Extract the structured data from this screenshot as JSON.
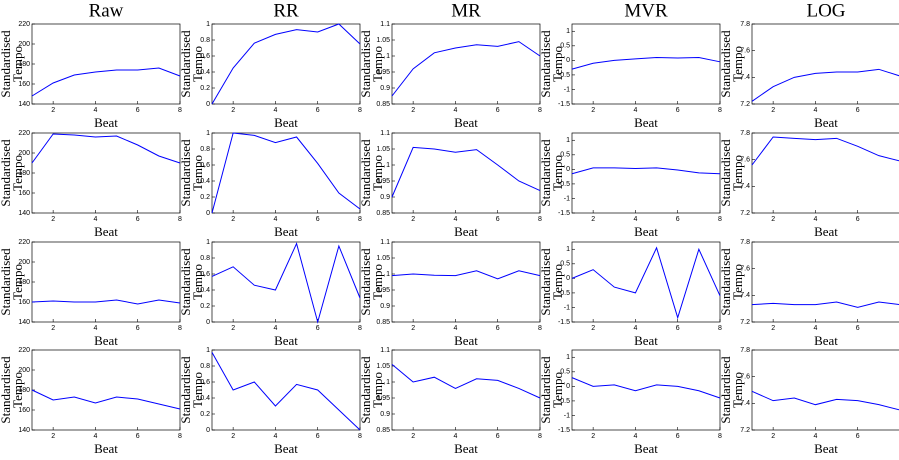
{
  "chart_data": [
    {
      "type": "line",
      "title": "Raw",
      "xlabel": "Beat",
      "ylabel": [
        "Standardised",
        "Tempo"
      ],
      "x": [
        1,
        2,
        3,
        4,
        5,
        6,
        7,
        8
      ],
      "values": [
        148,
        161,
        169,
        172,
        174,
        174,
        176,
        168
      ],
      "color": "#0000ff",
      "xlim": [
        1,
        8
      ],
      "ylim": [
        140,
        220
      ],
      "xticks": [
        2,
        4,
        6,
        8
      ],
      "yticks": [
        140,
        160,
        180,
        200,
        220
      ]
    },
    {
      "type": "line",
      "title": "RR",
      "xlabel": "Beat",
      "ylabel": [
        "Standardised",
        "Tempo"
      ],
      "x": [
        1,
        2,
        3,
        4,
        5,
        6,
        7,
        8
      ],
      "values": [
        0,
        0.45,
        0.76,
        0.87,
        0.93,
        0.9,
        1,
        0.75
      ],
      "color": "#0000ff",
      "xlim": [
        1,
        8
      ],
      "ylim": [
        0,
        1
      ],
      "xticks": [
        2,
        4,
        6,
        8
      ],
      "yticks": [
        0,
        0.2,
        0.4,
        0.6,
        0.8,
        1
      ]
    },
    {
      "type": "line",
      "title": "MR",
      "xlabel": "Beat",
      "ylabel": [
        "Standardised",
        "Tempo"
      ],
      "x": [
        1,
        2,
        3,
        4,
        5,
        6,
        7,
        8
      ],
      "values": [
        0.875,
        0.96,
        1.01,
        1.025,
        1.035,
        1.03,
        1.045,
        1.0
      ],
      "color": "#0000ff",
      "xlim": [
        1,
        8
      ],
      "ylim": [
        0.85,
        1.1
      ],
      "xticks": [
        2,
        4,
        6,
        8
      ],
      "yticks": [
        0.85,
        0.9,
        0.95,
        1,
        1.05,
        1.1
      ]
    },
    {
      "type": "line",
      "title": "MVR",
      "xlabel": "Beat",
      "ylabel": [
        "Standardised",
        "Tempo"
      ],
      "x": [
        1,
        2,
        3,
        4,
        5,
        6,
        7,
        8
      ],
      "values": [
        -0.3,
        -0.1,
        0,
        0.05,
        0.1,
        0.08,
        0.1,
        -0.05
      ],
      "color": "#0000ff",
      "xlim": [
        1,
        8
      ],
      "ylim": [
        -1.5,
        1.25
      ],
      "xticks": [
        2,
        4,
        6,
        8
      ],
      "yticks": [
        -1.5,
        -1,
        -0.5,
        0,
        0.5,
        1
      ]
    },
    {
      "type": "line",
      "title": "LOG",
      "xlabel": "Beat",
      "ylabel": [
        "Standardised",
        "Tempo"
      ],
      "x": [
        1,
        2,
        3,
        4,
        5,
        6,
        7,
        8
      ],
      "values": [
        7.22,
        7.33,
        7.4,
        7.43,
        7.44,
        7.44,
        7.46,
        7.41
      ],
      "color": "#0000ff",
      "xlim": [
        1,
        8
      ],
      "ylim": [
        7.2,
        7.8
      ],
      "xticks": [
        2,
        4,
        6
      ],
      "yticks": [
        7.2,
        7.4,
        7.6,
        7.8
      ]
    },
    {
      "type": "line",
      "xlabel": "Beat",
      "ylabel": [
        "Standardised",
        "Tempo"
      ],
      "x": [
        1,
        2,
        3,
        4,
        5,
        6,
        7,
        8
      ],
      "values": [
        190,
        219,
        218,
        216,
        217,
        208,
        197,
        190
      ],
      "color": "#0000ff",
      "xlim": [
        1,
        8
      ],
      "ylim": [
        140,
        220
      ],
      "xticks": [
        2,
        4,
        6,
        8
      ],
      "yticks": [
        140,
        160,
        180,
        200,
        220
      ]
    },
    {
      "type": "line",
      "xlabel": "Beat",
      "ylabel": [
        "Standardised",
        "Tempo"
      ],
      "x": [
        1,
        2,
        3,
        4,
        5,
        6,
        7,
        8
      ],
      "values": [
        0,
        1,
        0.97,
        0.88,
        0.95,
        0.62,
        0.25,
        0.05
      ],
      "color": "#0000ff",
      "xlim": [
        1,
        8
      ],
      "ylim": [
        0,
        1
      ],
      "xticks": [
        2,
        4,
        6,
        8
      ],
      "yticks": [
        0,
        0.2,
        0.4,
        0.6,
        0.8,
        1
      ]
    },
    {
      "type": "line",
      "xlabel": "Beat",
      "ylabel": [
        "Standardised",
        "Tempo"
      ],
      "x": [
        1,
        2,
        3,
        4,
        5,
        6,
        7,
        8
      ],
      "values": [
        0.9,
        1.055,
        1.05,
        1.04,
        1.048,
        1.0,
        0.95,
        0.92
      ],
      "color": "#0000ff",
      "xlim": [
        1,
        8
      ],
      "ylim": [
        0.85,
        1.1
      ],
      "xticks": [
        2,
        4,
        6,
        8
      ],
      "yticks": [
        0.85,
        0.9,
        0.95,
        1,
        1.05,
        1.1
      ]
    },
    {
      "type": "line",
      "xlabel": "Beat",
      "ylabel": [
        "Standardised",
        "Tempo"
      ],
      "x": [
        1,
        2,
        3,
        4,
        5,
        6,
        7,
        8
      ],
      "values": [
        -0.15,
        0.05,
        0.05,
        0.03,
        0.05,
        -0.02,
        -0.12,
        -0.15
      ],
      "color": "#0000ff",
      "xlim": [
        1,
        8
      ],
      "ylim": [
        -1.5,
        1.25
      ],
      "xticks": [
        2,
        4,
        6,
        8
      ],
      "yticks": [
        -1.5,
        -1,
        -0.5,
        0,
        0.5,
        1
      ]
    },
    {
      "type": "line",
      "xlabel": "Beat",
      "ylabel": [
        "Standardised",
        "Tempo"
      ],
      "x": [
        1,
        2,
        3,
        4,
        5,
        6,
        7,
        8
      ],
      "values": [
        7.56,
        7.77,
        7.76,
        7.75,
        7.76,
        7.7,
        7.63,
        7.59
      ],
      "color": "#0000ff",
      "xlim": [
        1,
        8
      ],
      "ylim": [
        7.2,
        7.8
      ],
      "xticks": [
        2,
        4,
        6
      ],
      "yticks": [
        7.2,
        7.4,
        7.6,
        7.8
      ]
    },
    {
      "type": "line",
      "xlabel": "Beat",
      "ylabel": [
        "Standardised",
        "Tempo"
      ],
      "x": [
        1,
        2,
        3,
        4,
        5,
        6,
        7,
        8
      ],
      "values": [
        160,
        161,
        160,
        160,
        162,
        158,
        162,
        159
      ],
      "color": "#0000ff",
      "xlim": [
        1,
        8
      ],
      "ylim": [
        140,
        220
      ],
      "xticks": [
        2,
        4,
        6,
        8
      ],
      "yticks": [
        140,
        160,
        180,
        200,
        220
      ]
    },
    {
      "type": "line",
      "xlabel": "Beat",
      "ylabel": [
        "Standardised",
        "Tempo"
      ],
      "x": [
        1,
        2,
        3,
        4,
        5,
        6,
        7,
        8
      ],
      "values": [
        0.57,
        0.69,
        0.46,
        0.4,
        0.98,
        0,
        0.95,
        0.3
      ],
      "color": "#0000ff",
      "xlim": [
        1,
        8
      ],
      "ylim": [
        0,
        1
      ],
      "xticks": [
        2,
        4,
        6,
        8
      ],
      "yticks": [
        0,
        0.2,
        0.4,
        0.6,
        0.8,
        1
      ]
    },
    {
      "type": "line",
      "xlabel": "Beat",
      "ylabel": [
        "Standardised",
        "Tempo"
      ],
      "x": [
        1,
        2,
        3,
        4,
        5,
        6,
        7,
        8
      ],
      "values": [
        0.995,
        1.0,
        0.996,
        0.995,
        1.01,
        0.985,
        1.01,
        0.995
      ],
      "color": "#0000ff",
      "xlim": [
        1,
        8
      ],
      "ylim": [
        0.85,
        1.1
      ],
      "xticks": [
        2,
        4,
        6,
        8
      ],
      "yticks": [
        0.85,
        0.9,
        0.95,
        1,
        1.05,
        1.1
      ]
    },
    {
      "type": "line",
      "xlabel": "Beat",
      "ylabel": [
        "Standardised",
        "Tempo"
      ],
      "x": [
        1,
        2,
        3,
        4,
        5,
        6,
        7,
        8
      ],
      "values": [
        0,
        0.3,
        -0.3,
        -0.5,
        1.05,
        -1.35,
        1.0,
        -0.6
      ],
      "color": "#0000ff",
      "xlim": [
        1,
        8
      ],
      "ylim": [
        -1.5,
        1.25
      ],
      "xticks": [
        2,
        4,
        6,
        8
      ],
      "yticks": [
        -1.5,
        -1,
        -0.5,
        0,
        0.5,
        1
      ]
    },
    {
      "type": "line",
      "xlabel": "Beat",
      "ylabel": [
        "Standardised",
        "Tempo"
      ],
      "x": [
        1,
        2,
        3,
        4,
        5,
        6,
        7,
        8
      ],
      "values": [
        7.33,
        7.34,
        7.33,
        7.33,
        7.35,
        7.31,
        7.35,
        7.33
      ],
      "color": "#0000ff",
      "xlim": [
        1,
        8
      ],
      "ylim": [
        7.2,
        7.8
      ],
      "xticks": [
        2,
        4,
        6
      ],
      "yticks": [
        7.2,
        7.4,
        7.6,
        7.8
      ]
    },
    {
      "type": "line",
      "xlabel": "Beat",
      "ylabel": [
        "Standardised",
        "Tempo"
      ],
      "x": [
        1,
        2,
        3,
        4,
        5,
        6,
        7,
        8
      ],
      "values": [
        180,
        170,
        173,
        167,
        173,
        171,
        166,
        161
      ],
      "color": "#0000ff",
      "xlim": [
        1,
        8
      ],
      "ylim": [
        140,
        220
      ],
      "xticks": [
        2,
        4,
        6,
        8
      ],
      "yticks": [
        140,
        160,
        180,
        200,
        220
      ]
    },
    {
      "type": "line",
      "xlabel": "Beat",
      "ylabel": [
        "Standardised",
        "Tempo"
      ],
      "x": [
        1,
        2,
        3,
        4,
        5,
        6,
        7,
        8
      ],
      "values": [
        0.97,
        0.5,
        0.6,
        0.3,
        0.57,
        0.5,
        0.25,
        0
      ],
      "color": "#0000ff",
      "xlim": [
        1,
        8
      ],
      "ylim": [
        0,
        1
      ],
      "xticks": [
        2,
        4,
        6,
        8
      ],
      "yticks": [
        0,
        0.2,
        0.4,
        0.6,
        0.8,
        1
      ]
    },
    {
      "type": "line",
      "xlabel": "Beat",
      "ylabel": [
        "Standardised",
        "Tempo"
      ],
      "x": [
        1,
        2,
        3,
        4,
        5,
        6,
        7,
        8
      ],
      "values": [
        1.055,
        1.0,
        1.015,
        0.98,
        1.01,
        1.005,
        0.98,
        0.95
      ],
      "color": "#0000ff",
      "xlim": [
        1,
        8
      ],
      "ylim": [
        0.85,
        1.1
      ],
      "xticks": [
        2,
        4,
        6,
        8
      ],
      "yticks": [
        0.85,
        0.9,
        0.95,
        1,
        1.05,
        1.1
      ]
    },
    {
      "type": "line",
      "xlabel": "Beat",
      "ylabel": [
        "Standardised",
        "Tempo"
      ],
      "x": [
        1,
        2,
        3,
        4,
        5,
        6,
        7,
        8
      ],
      "values": [
        0.3,
        0.0,
        0.05,
        -0.15,
        0.05,
        0.0,
        -0.15,
        -0.4
      ],
      "color": "#0000ff",
      "xlim": [
        1,
        8
      ],
      "ylim": [
        -1.5,
        1.25
      ],
      "xticks": [
        2,
        4,
        6,
        8
      ],
      "yticks": [
        -1.5,
        -1,
        -0.5,
        0,
        0.5,
        1
      ]
    },
    {
      "type": "line",
      "xlabel": "Beat",
      "ylabel": [
        "Standardised",
        "Tempo"
      ],
      "x": [
        1,
        2,
        3,
        4,
        5,
        6,
        7,
        8
      ],
      "values": [
        7.49,
        7.42,
        7.44,
        7.39,
        7.43,
        7.42,
        7.39,
        7.35
      ],
      "color": "#0000ff",
      "xlim": [
        1,
        8
      ],
      "ylim": [
        7.2,
        7.8
      ],
      "xticks": [
        2,
        4,
        6
      ],
      "yticks": [
        7.2,
        7.4,
        7.6,
        7.8
      ]
    }
  ]
}
